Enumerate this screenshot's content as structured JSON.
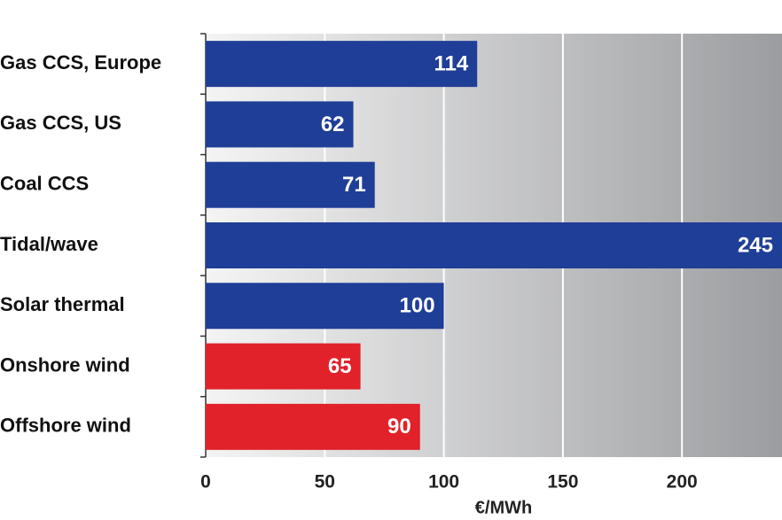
{
  "chart_data": {
    "type": "hbar",
    "categories": [
      "Gas CCS, Europe",
      "Gas CCS, US",
      "Coal CCS",
      "Tidal/wave",
      "Solar thermal",
      "Onshore wind",
      "Offshore wind"
    ],
    "values": [
      114,
      62,
      71,
      245,
      100,
      65,
      90
    ],
    "colors": [
      "#1f3e97",
      "#1f3e97",
      "#1f3e97",
      "#1f3e97",
      "#1f3e97",
      "#e1222a",
      "#e1222a"
    ],
    "xlabel": "€/MWh",
    "xlim": [
      0,
      242
    ],
    "xticks": [
      0,
      50,
      100,
      150,
      200
    ],
    "grid": true
  }
}
